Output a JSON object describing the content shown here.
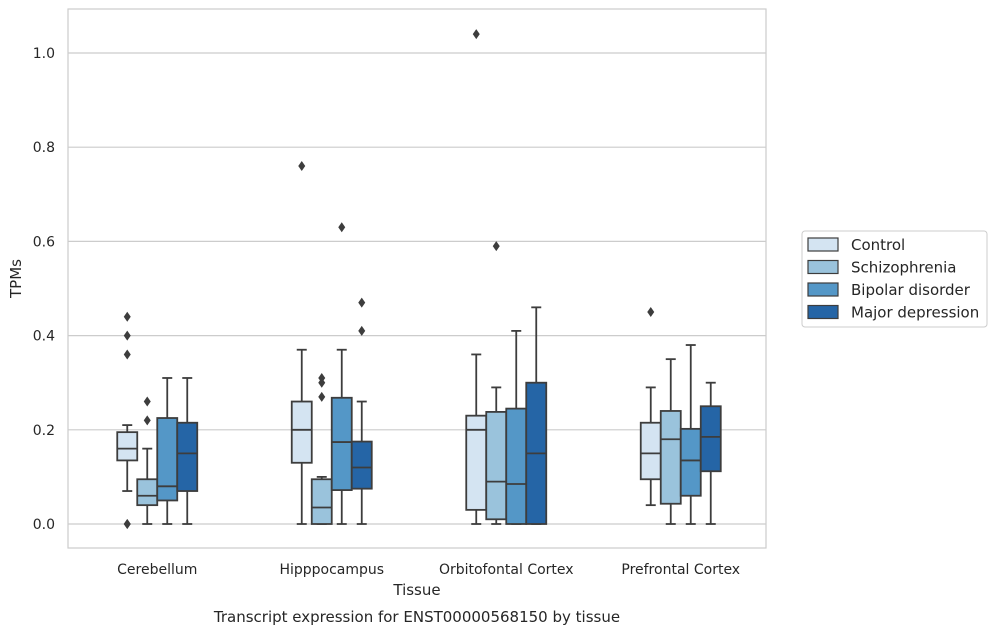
{
  "chart_data": {
    "type": "box",
    "title": "",
    "xlabel": "Tissue",
    "ylabel": "TPMs",
    "caption": "Transcript expression for ENST00000568150 by tissue",
    "ylim": [
      -0.05,
      1.09
    ],
    "yticks": [
      "0.0",
      "0.2",
      "0.4",
      "0.6",
      "0.8",
      "1.0"
    ],
    "grid": true,
    "legend_position": "right",
    "categories": [
      "Cerebellum",
      "Hipppocampus",
      "Orbitofontal Cortex",
      "Prefrontal Cortex"
    ],
    "series": [
      {
        "name": "Control",
        "color": "#d4e4f2",
        "boxes": [
          {
            "whislo": 0.07,
            "q1": 0.135,
            "med": 0.16,
            "q3": 0.195,
            "whishi": 0.21,
            "fliers": [
              0.44,
              0.4,
              0.36,
              0.0,
              0.0
            ]
          },
          {
            "whislo": 0.0,
            "q1": 0.13,
            "med": 0.2,
            "q3": 0.26,
            "whishi": 0.37,
            "fliers": [
              0.76
            ]
          },
          {
            "whislo": 0.0,
            "q1": 0.03,
            "med": 0.2,
            "q3": 0.23,
            "whishi": 0.36,
            "fliers": [
              1.04
            ]
          },
          {
            "whislo": 0.04,
            "q1": 0.095,
            "med": 0.15,
            "q3": 0.215,
            "whishi": 0.29,
            "fliers": [
              0.45
            ]
          }
        ]
      },
      {
        "name": "Schizophrenia",
        "color": "#9ac3dc",
        "boxes": [
          {
            "whislo": 0.0,
            "q1": 0.04,
            "med": 0.06,
            "q3": 0.095,
            "whishi": 0.16,
            "fliers": [
              0.26,
              0.22
            ]
          },
          {
            "whislo": 0.0,
            "q1": 0.0,
            "med": 0.035,
            "q3": 0.095,
            "whishi": 0.1,
            "fliers": [
              0.31,
              0.3,
              0.27
            ]
          },
          {
            "whislo": 0.0,
            "q1": 0.01,
            "med": 0.09,
            "q3": 0.238,
            "whishi": 0.29,
            "fliers": [
              0.59
            ]
          },
          {
            "whislo": 0.0,
            "q1": 0.043,
            "med": 0.18,
            "q3": 0.24,
            "whishi": 0.35,
            "fliers": []
          }
        ]
      },
      {
        "name": "Bipolar disorder",
        "color": "#5497c7",
        "boxes": [
          {
            "whislo": 0.0,
            "q1": 0.05,
            "med": 0.08,
            "q3": 0.225,
            "whishi": 0.31,
            "fliers": []
          },
          {
            "whislo": 0.0,
            "q1": 0.072,
            "med": 0.174,
            "q3": 0.268,
            "whishi": 0.37,
            "fliers": [
              0.63
            ]
          },
          {
            "whislo": 0.0,
            "q1": 0.0,
            "med": 0.085,
            "q3": 0.245,
            "whishi": 0.41,
            "fliers": []
          },
          {
            "whislo": 0.0,
            "q1": 0.06,
            "med": 0.135,
            "q3": 0.202,
            "whishi": 0.38,
            "fliers": []
          }
        ]
      },
      {
        "name": "Major depression",
        "color": "#2565a6",
        "boxes": [
          {
            "whislo": 0.0,
            "q1": 0.07,
            "med": 0.15,
            "q3": 0.215,
            "whishi": 0.31,
            "fliers": []
          },
          {
            "whislo": 0.0,
            "q1": 0.075,
            "med": 0.12,
            "q3": 0.175,
            "whishi": 0.26,
            "fliers": [
              0.47,
              0.41
            ]
          },
          {
            "whislo": 0.0,
            "q1": 0.0,
            "med": 0.15,
            "q3": 0.3,
            "whishi": 0.46,
            "fliers": []
          },
          {
            "whislo": 0.0,
            "q1": 0.112,
            "med": 0.185,
            "q3": 0.25,
            "whishi": 0.3,
            "fliers": []
          }
        ]
      }
    ]
  }
}
